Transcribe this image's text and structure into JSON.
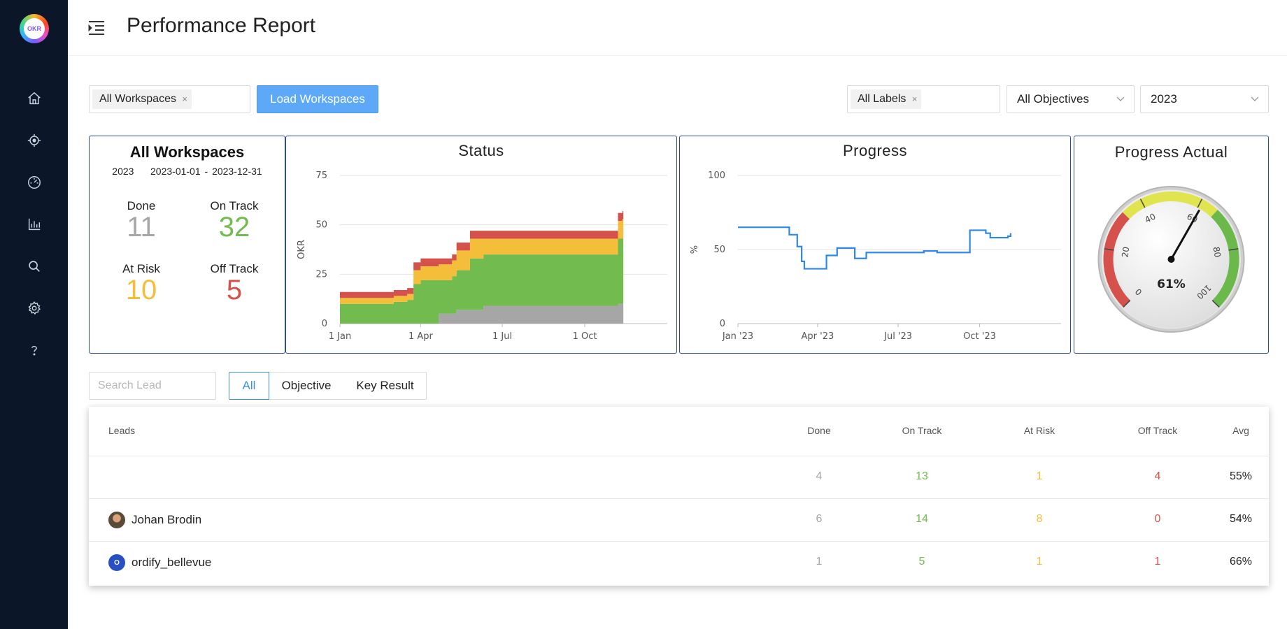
{
  "app": {
    "logo_text": "OKR"
  },
  "header": {
    "title": "Performance Report"
  },
  "sidebar": {
    "items": [
      {
        "name": "home-icon"
      },
      {
        "name": "target-icon"
      },
      {
        "name": "dashboard-icon"
      },
      {
        "name": "bar-chart-icon"
      },
      {
        "name": "search-icon"
      },
      {
        "name": "gear-icon"
      },
      {
        "name": "help-icon"
      }
    ]
  },
  "filters": {
    "workspaces_tag": "All Workspaces",
    "load_button": "Load Workspaces",
    "labels_tag": "All Labels",
    "objectives_select": "All Objectives",
    "year_select": "2023",
    "tag_close": "×"
  },
  "summary": {
    "title": "All Workspaces",
    "year": "2023",
    "range": "2023-01-01 - 2023-12-31",
    "done_label": "Done",
    "done_value": "11",
    "on_track_label": "On Track",
    "on_track_value": "32",
    "at_risk_label": "At Risk",
    "at_risk_value": "10",
    "off_track_label": "Off Track",
    "off_track_value": "5"
  },
  "colors": {
    "done": "#a6a6a6",
    "on_track": "#72bb4f",
    "at_risk": "#f5be3a",
    "off_track": "#d4524b",
    "line": "#2f87e6",
    "border": "#2849a8",
    "accent": "#3b8ee8"
  },
  "chart_data": [
    {
      "type": "area",
      "title": "Status",
      "ylabel": "OKR",
      "xlabel": "",
      "stacked": true,
      "ylim": [
        0,
        75
      ],
      "yticks": [
        "0",
        "25",
        "50",
        "75"
      ],
      "xticks": [
        {
          "label": "1 Jan",
          "day": 0
        },
        {
          "label": "1 Apr",
          "day": 90
        },
        {
          "label": "1 Jul",
          "day": 181
        },
        {
          "label": "1 Oct",
          "day": 273
        }
      ],
      "x_domain": [
        0,
        365
      ],
      "x": [
        0,
        45,
        60,
        75,
        82,
        90,
        100,
        110,
        125,
        130,
        145,
        160,
        175,
        200,
        215,
        235,
        260,
        285,
        310,
        315
      ],
      "series": [
        {
          "key": "done",
          "values": [
            0,
            0,
            0,
            0,
            0,
            0,
            0,
            5,
            5,
            7,
            7,
            9,
            9,
            9,
            9,
            9,
            9,
            9,
            10,
            10
          ]
        },
        {
          "key": "on_track",
          "values": [
            10,
            10,
            11,
            12,
            20,
            22,
            22,
            17,
            19,
            20,
            26,
            26,
            26,
            26,
            26,
            26,
            26,
            26,
            33,
            33
          ]
        },
        {
          "key": "at_risk",
          "values": [
            3,
            3,
            3,
            3,
            7,
            7,
            7,
            8,
            8,
            10,
            10,
            8,
            8,
            8,
            8,
            8,
            8,
            8,
            9,
            10
          ]
        },
        {
          "key": "off_track",
          "values": [
            3,
            3,
            3,
            3,
            4,
            4,
            4,
            3,
            3,
            4,
            4,
            4,
            4,
            4,
            4,
            4,
            4,
            4,
            4,
            4
          ]
        }
      ]
    },
    {
      "type": "line",
      "title": "Progress",
      "ylabel": "%",
      "xlabel": "",
      "ylim": [
        0,
        100
      ],
      "yticks": [
        "0",
        "50",
        "100"
      ],
      "xticks": [
        {
          "label": "Jan '23",
          "day": 0
        },
        {
          "label": "Apr '23",
          "day": 90
        },
        {
          "label": "Jul '23",
          "day": 181
        },
        {
          "label": "Oct '23",
          "day": 273
        }
      ],
      "x_domain": [
        0,
        365
      ],
      "x": [
        0,
        55,
        58,
        63,
        67,
        70,
        72,
        75,
        98,
        100,
        110,
        112,
        130,
        132,
        140,
        145,
        160,
        205,
        210,
        225,
        260,
        262,
        275,
        280,
        285,
        305,
        308
      ],
      "y": [
        65,
        65,
        60,
        60,
        52,
        52,
        42,
        37,
        37,
        46,
        46,
        51,
        51,
        44,
        44,
        48,
        48,
        48,
        49,
        48,
        48,
        63,
        63,
        61,
        58,
        59,
        61
      ]
    },
    {
      "type": "gauge",
      "title": "Progress Actual",
      "value": 61,
      "value_label": "61%",
      "range": [
        0,
        100
      ],
      "ticks": [
        "0",
        "20",
        "40",
        "60",
        "80",
        "100"
      ],
      "bands": [
        {
          "from": 0,
          "to": 33,
          "color": "#d4524b"
        },
        {
          "from": 33,
          "to": 66,
          "color": "#dfe44f"
        },
        {
          "from": 66,
          "to": 100,
          "color": "#6ab94a"
        }
      ]
    }
  ],
  "lead_filter": {
    "search_placeholder": "Search Lead",
    "tabs": [
      "All",
      "Objective",
      "Key Result"
    ]
  },
  "table": {
    "headers": {
      "leads": "Leads",
      "done": "Done",
      "on_track": "On Track",
      "at_risk": "At Risk",
      "off_track": "Off Track",
      "avg": "Avg"
    },
    "rows": [
      {
        "lead": "",
        "avatar": "",
        "done": "4",
        "on_track": "13",
        "at_risk": "1",
        "off_track": "4",
        "avg": "55%"
      },
      {
        "lead": "Johan Brodin",
        "avatar": "photo",
        "done": "6",
        "on_track": "14",
        "at_risk": "8",
        "off_track": "0",
        "avg": "54%"
      },
      {
        "lead": "ordify_bellevue",
        "avatar": "O",
        "done": "1",
        "on_track": "5",
        "at_risk": "1",
        "off_track": "1",
        "avg": "66%"
      }
    ]
  }
}
